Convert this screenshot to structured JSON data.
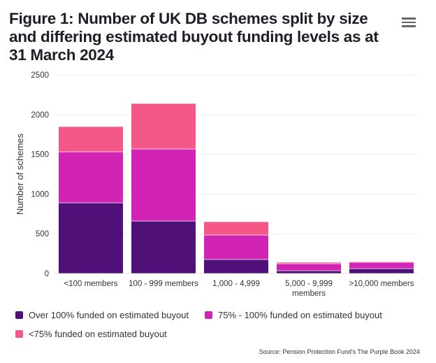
{
  "menu_icon": "hamburger-menu-icon",
  "chart_data": {
    "type": "bar",
    "stacked": true,
    "title": "Figure 1: Number of UK DB schemes split by size and differing estimated buyout funding levels as at 31 March 2024",
    "xlabel": "",
    "ylabel": "Number of schemes",
    "ylim": [
      0,
      2500
    ],
    "yticks": [
      0,
      500,
      1000,
      1500,
      2000,
      2500
    ],
    "grid": true,
    "categories": [
      [
        "<100 members"
      ],
      [
        "100 - 999 members"
      ],
      [
        "1,000 - 4,999"
      ],
      [
        "5,000 - 9,999",
        "members"
      ],
      [
        ">10,000 members"
      ]
    ],
    "series": [
      {
        "name": "Over 100% funded on estimated buyout",
        "color": "#4f1178",
        "values": [
          889,
          660,
          176,
          35,
          62
        ]
      },
      {
        "name": "75% - 100% funded on estimated buyout",
        "color": "#d124b5",
        "values": [
          643,
          907,
          308,
          88,
          79
        ]
      },
      {
        "name": "<75% funded on estimated buyout",
        "color": "#f45887",
        "values": [
          317,
          572,
          167,
          18,
          9
        ]
      }
    ],
    "legend_position": "bottom",
    "source": "Source: Pension Protection Fund's The Purple Book 2024"
  }
}
